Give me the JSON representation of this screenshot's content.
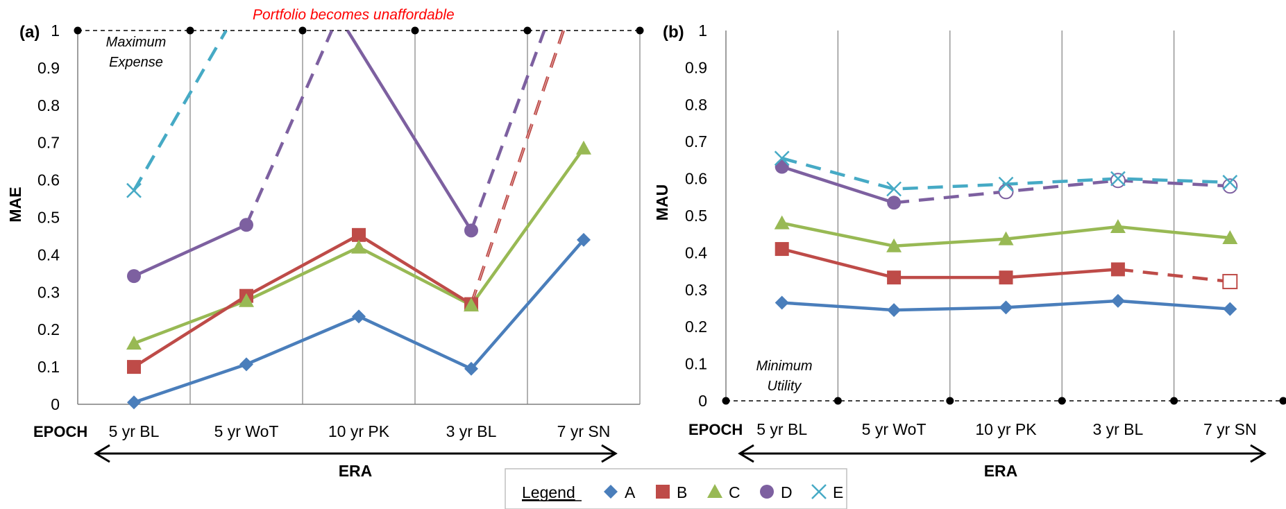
{
  "panel_labels": [
    "(a)",
    "(b)"
  ],
  "epoch_label": "EPOCH",
  "era_label": "ERA",
  "annotation_unaffordable": "Portfolio becomes unaffordable",
  "annotation_max": [
    "Maximum",
    "Expense"
  ],
  "annotation_min": [
    "Minimum",
    "Utility"
  ],
  "legend": {
    "title": "Legend",
    "items": [
      {
        "label": "A",
        "color": "#4a7ebb",
        "marker": "diamond"
      },
      {
        "label": "B",
        "color": "#be4b48",
        "marker": "square"
      },
      {
        "label": "C",
        "color": "#98b954",
        "marker": "triangle"
      },
      {
        "label": "D",
        "color": "#7d60a0",
        "marker": "circle"
      },
      {
        "label": "E",
        "color": "#46aac5",
        "marker": "x"
      }
    ]
  },
  "chart_data": [
    {
      "type": "line",
      "ylabel": "MAE",
      "xlabel": "ERA",
      "categories": [
        "5 yr BL",
        "5 yr WoT",
        "10 yr PK",
        "3 yr BL",
        "7 yr SN"
      ],
      "ylim": [
        0,
        1
      ],
      "yticks": [
        "0",
        "0.1",
        "0.2",
        "0.3",
        "0.4",
        "0.5",
        "0.6",
        "0.7",
        "0.8",
        "0.9",
        "1"
      ],
      "series": [
        {
          "name": "A",
          "values": [
            0.005,
            0.107,
            0.235,
            0.095,
            0.44
          ]
        },
        {
          "name": "B",
          "values": [
            0.1,
            0.29,
            0.453,
            0.268,
            null
          ],
          "dashed_to_limit_after": 3
        },
        {
          "name": "C",
          "values": [
            0.163,
            0.277,
            0.42,
            0.265,
            0.685
          ]
        },
        {
          "name": "D",
          "values": [
            0.343,
            0.48,
            null,
            0.465,
            null
          ],
          "dashed_to_limit_after": [
            1,
            3
          ],
          "solid_from_limit_to": 3
        },
        {
          "name": "E",
          "values": [
            0.572,
            null,
            null,
            null,
            null
          ],
          "dashed_to_limit_after": 0
        }
      ],
      "reference_line": {
        "y": 1,
        "style": "dashed"
      }
    },
    {
      "type": "line",
      "ylabel": "MAU",
      "xlabel": "ERA",
      "categories": [
        "5 yr BL",
        "5 yr WoT",
        "10 yr PK",
        "3 yr BL",
        "7 yr SN"
      ],
      "ylim": [
        0,
        1
      ],
      "yticks": [
        "0",
        "0.1",
        "0.2",
        "0.3",
        "0.4",
        "0.5",
        "0.6",
        "0.7",
        "0.8",
        "0.9",
        "1"
      ],
      "series": [
        {
          "name": "A",
          "values": [
            0.265,
            0.245,
            0.252,
            0.27,
            0.248
          ]
        },
        {
          "name": "B",
          "values": [
            0.41,
            0.333,
            0.333,
            0.355,
            0.322
          ],
          "hollow_from": 4
        },
        {
          "name": "C",
          "values": [
            0.48,
            0.418,
            0.437,
            0.47,
            0.44
          ]
        },
        {
          "name": "D",
          "values": [
            0.632,
            0.535,
            0.565,
            0.595,
            0.58
          ],
          "hollow_from": 2
        },
        {
          "name": "E",
          "values": [
            0.655,
            0.572,
            0.585,
            0.6,
            0.59
          ]
        }
      ],
      "reference_line": {
        "y": 0,
        "style": "dashed"
      }
    }
  ]
}
